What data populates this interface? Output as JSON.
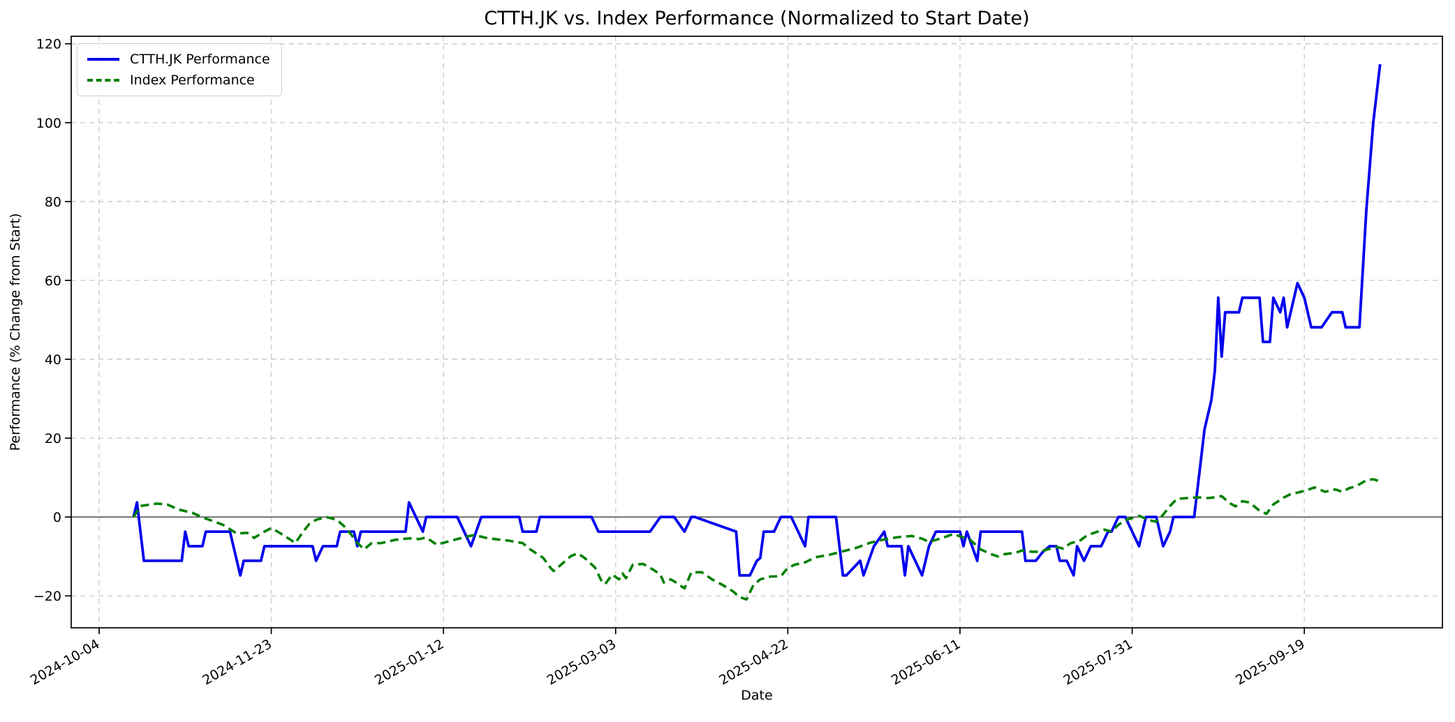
{
  "figure": {
    "title": "CTTH.JK vs. Index Performance (Normalized to Start Date)",
    "x_label": "Date",
    "y_label": "Performance (% Change from Start)"
  },
  "legend": {
    "position": "upper-left",
    "items": [
      {
        "label": "CTTH.JK Performance",
        "color": "#0000ee",
        "style": "solid"
      },
      {
        "label": "Index Performance",
        "color": "#008000",
        "style": "dashed"
      }
    ]
  },
  "chart_data": {
    "type": "line",
    "title": "CTTH.JK vs. Index Performance (Normalized to Start Date)",
    "xlabel": "Date",
    "ylabel": "Performance (% Change from Start)",
    "grid": true,
    "x_unit": "days since 2024-10-04",
    "xlim": [
      -8.1,
      390.1
    ],
    "ylim": [
      -28.1,
      121.9
    ],
    "x_ticks": [
      {
        "d": 0,
        "label": "2024-10-04"
      },
      {
        "d": 50,
        "label": "2024-11-23"
      },
      {
        "d": 100,
        "label": "2025-01-12"
      },
      {
        "d": 150,
        "label": "2025-03-03"
      },
      {
        "d": 200,
        "label": "2025-04-22"
      },
      {
        "d": 250,
        "label": "2025-06-11"
      },
      {
        "d": 300,
        "label": "2025-07-31"
      },
      {
        "d": 350,
        "label": "2025-09-19"
      }
    ],
    "y_ticks": [
      {
        "v": -20,
        "label": "−20"
      },
      {
        "v": 0,
        "label": "0"
      },
      {
        "v": 20,
        "label": "20"
      },
      {
        "v": 40,
        "label": "40"
      },
      {
        "v": 60,
        "label": "60"
      },
      {
        "v": 80,
        "label": "80"
      },
      {
        "v": 100,
        "label": "100"
      },
      {
        "v": 120,
        "label": "120"
      }
    ],
    "zero_line": 0,
    "series": [
      {
        "name": "CTTH.JK Performance",
        "color": "#0000ee",
        "dash": null,
        "width": 3.8,
        "points": [
          [
            10,
            0
          ],
          [
            11,
            3.7
          ],
          [
            13,
            -11.1
          ],
          [
            24,
            -11.1
          ],
          [
            25,
            -3.7
          ],
          [
            26,
            -7.4
          ],
          [
            30,
            -7.4
          ],
          [
            31,
            -3.7
          ],
          [
            38,
            -3.7
          ],
          [
            39,
            -7.4
          ],
          [
            41,
            -14.8
          ],
          [
            42,
            -11.1
          ],
          [
            47,
            -11.1
          ],
          [
            48,
            -7.4
          ],
          [
            62,
            -7.4
          ],
          [
            63,
            -11.1
          ],
          [
            65,
            -7.4
          ],
          [
            69,
            -7.4
          ],
          [
            70,
            -3.7
          ],
          [
            74,
            -3.7
          ],
          [
            75,
            -7.4
          ],
          [
            76,
            -3.7
          ],
          [
            89,
            -3.7
          ],
          [
            90,
            3.7
          ],
          [
            94,
            -3.7
          ],
          [
            95,
            0
          ],
          [
            104,
            0
          ],
          [
            106,
            -3.7
          ],
          [
            108,
            -7.4
          ],
          [
            111,
            0
          ],
          [
            122,
            0
          ],
          [
            123,
            -3.7
          ],
          [
            127,
            -3.7
          ],
          [
            128,
            0
          ],
          [
            143,
            0
          ],
          [
            145,
            -3.7
          ],
          [
            160,
            -3.7
          ],
          [
            163,
            0
          ],
          [
            167,
            0
          ],
          [
            170,
            -3.7
          ],
          [
            172,
            0
          ],
          [
            173,
            0
          ],
          [
            185,
            -3.7
          ],
          [
            186,
            -14.8
          ],
          [
            189,
            -14.8
          ],
          [
            191,
            -11.1
          ],
          [
            192,
            -10.4
          ],
          [
            193,
            -3.7
          ],
          [
            196,
            -3.7
          ],
          [
            198,
            0
          ],
          [
            201,
            0
          ],
          [
            203,
            -3.7
          ],
          [
            205,
            -7.4
          ],
          [
            206,
            0
          ],
          [
            214,
            0
          ],
          [
            216,
            -14.8
          ],
          [
            217,
            -14.8
          ],
          [
            221,
            -11.1
          ],
          [
            222,
            -14.8
          ],
          [
            225,
            -7.4
          ],
          [
            228,
            -3.7
          ],
          [
            229,
            -7.4
          ],
          [
            233,
            -7.4
          ],
          [
            234,
            -14.8
          ],
          [
            235,
            -7.4
          ],
          [
            237,
            -11.1
          ],
          [
            239,
            -14.8
          ],
          [
            241,
            -7.4
          ],
          [
            243,
            -3.7
          ],
          [
            250,
            -3.7
          ],
          [
            251,
            -7.4
          ],
          [
            252,
            -3.7
          ],
          [
            255,
            -11.1
          ],
          [
            256,
            -3.7
          ],
          [
            268,
            -3.7
          ],
          [
            269,
            -11.1
          ],
          [
            272,
            -11.1
          ],
          [
            274,
            -8.9
          ],
          [
            276,
            -7.4
          ],
          [
            278,
            -7.4
          ],
          [
            279,
            -11.1
          ],
          [
            281,
            -11.1
          ],
          [
            283,
            -14.8
          ],
          [
            284,
            -7.4
          ],
          [
            286,
            -11.1
          ],
          [
            288,
            -7.4
          ],
          [
            291,
            -7.4
          ],
          [
            293,
            -3.7
          ],
          [
            294,
            -3.7
          ],
          [
            296,
            0
          ],
          [
            298,
            0
          ],
          [
            300,
            -3.7
          ],
          [
            302,
            -7.4
          ],
          [
            304,
            0
          ],
          [
            307,
            0
          ],
          [
            309,
            -7.4
          ],
          [
            311,
            -3.7
          ],
          [
            312,
            0
          ],
          [
            318,
            0
          ],
          [
            320,
            14.8
          ],
          [
            321,
            22.2
          ],
          [
            322,
            25.9
          ],
          [
            323,
            29.6
          ],
          [
            324,
            37
          ],
          [
            325,
            55.6
          ],
          [
            326,
            40.7
          ],
          [
            327,
            51.9
          ],
          [
            331,
            51.9
          ],
          [
            332,
            55.6
          ],
          [
            337,
            55.6
          ],
          [
            338,
            44.4
          ],
          [
            340,
            44.4
          ],
          [
            341,
            55.6
          ],
          [
            343,
            51.9
          ],
          [
            344,
            55.6
          ],
          [
            345,
            48.1
          ],
          [
            348,
            59.3
          ],
          [
            350,
            55.6
          ],
          [
            352,
            48.1
          ],
          [
            355,
            48.1
          ],
          [
            358,
            51.9
          ],
          [
            361,
            51.9
          ],
          [
            362,
            48.1
          ],
          [
            366,
            48.1
          ],
          [
            368,
            77.8
          ],
          [
            370,
            100
          ],
          [
            372,
            114.8
          ]
        ]
      },
      {
        "name": "Index Performance",
        "color": "#008000",
        "dash": [
          12,
          7
        ],
        "width": 3.6,
        "points": [
          [
            10,
            0
          ],
          [
            12,
            2.8
          ],
          [
            15,
            3.2
          ],
          [
            17,
            3.4
          ],
          [
            20,
            3.1
          ],
          [
            23,
            1.9
          ],
          [
            27,
            1.1
          ],
          [
            30,
            -0.1
          ],
          [
            33,
            -1
          ],
          [
            36,
            -2
          ],
          [
            40,
            -4.2
          ],
          [
            43,
            -4
          ],
          [
            45,
            -5.3
          ],
          [
            48,
            -3.7
          ],
          [
            50,
            -2.8
          ],
          [
            53,
            -4.3
          ],
          [
            56,
            -6
          ],
          [
            57,
            -6.6
          ],
          [
            59,
            -4
          ],
          [
            61,
            -1.8
          ],
          [
            63,
            -0.7
          ],
          [
            66,
            0
          ],
          [
            69,
            -0.7
          ],
          [
            71,
            -2.2
          ],
          [
            73,
            -4.2
          ],
          [
            75,
            -6.6
          ],
          [
            77,
            -8.2
          ],
          [
            79,
            -6.7
          ],
          [
            82,
            -6.6
          ],
          [
            86,
            -5.8
          ],
          [
            90,
            -5.4
          ],
          [
            93,
            -5.6
          ],
          [
            95,
            -5.2
          ],
          [
            98,
            -7
          ],
          [
            101,
            -6.3
          ],
          [
            104,
            -5.6
          ],
          [
            107,
            -4.9
          ],
          [
            109,
            -4.6
          ],
          [
            113,
            -5.4
          ],
          [
            116,
            -5.7
          ],
          [
            119,
            -6
          ],
          [
            123,
            -6.6
          ],
          [
            125,
            -8.1
          ],
          [
            129,
            -10.4
          ],
          [
            131,
            -12.8
          ],
          [
            132,
            -13.7
          ],
          [
            134,
            -12.2
          ],
          [
            137,
            -9.9
          ],
          [
            139,
            -9.2
          ],
          [
            141,
            -10.4
          ],
          [
            144,
            -12.8
          ],
          [
            146,
            -16.4
          ],
          [
            147,
            -17
          ],
          [
            149,
            -14.6
          ],
          [
            151,
            -15.8
          ],
          [
            152,
            -14.3
          ],
          [
            153,
            -15.5
          ],
          [
            155,
            -12.1
          ],
          [
            158,
            -11.9
          ],
          [
            161,
            -13.4
          ],
          [
            163,
            -14.6
          ],
          [
            164,
            -16.6
          ],
          [
            166,
            -15.8
          ],
          [
            167,
            -16.3
          ],
          [
            169,
            -17.5
          ],
          [
            170,
            -18.1
          ],
          [
            172,
            -14
          ],
          [
            175,
            -14
          ],
          [
            178,
            -15.8
          ],
          [
            181,
            -17.2
          ],
          [
            184,
            -18.8
          ],
          [
            186,
            -20.3
          ],
          [
            188,
            -20.9
          ],
          [
            190,
            -17.3
          ],
          [
            192,
            -15.8
          ],
          [
            195,
            -15.1
          ],
          [
            198,
            -15
          ],
          [
            200,
            -12.9
          ],
          [
            202,
            -12.1
          ],
          [
            205,
            -11.5
          ],
          [
            208,
            -10.2
          ],
          [
            212,
            -9.6
          ],
          [
            216,
            -8.7
          ],
          [
            220,
            -7.8
          ],
          [
            224,
            -6.5
          ],
          [
            228,
            -5.7
          ],
          [
            232,
            -5.1
          ],
          [
            236,
            -4.8
          ],
          [
            239,
            -5.5
          ],
          [
            241,
            -6.3
          ],
          [
            245,
            -5.3
          ],
          [
            248,
            -4.3
          ],
          [
            250,
            -4.9
          ],
          [
            253,
            -5.8
          ],
          [
            256,
            -8.2
          ],
          [
            259,
            -9.4
          ],
          [
            261,
            -10
          ],
          [
            263,
            -9.4
          ],
          [
            266,
            -9.1
          ],
          [
            268,
            -8.5
          ],
          [
            271,
            -8.8
          ],
          [
            273,
            -8.8
          ],
          [
            276,
            -8.1
          ],
          [
            278,
            -7.6
          ],
          [
            280,
            -8
          ],
          [
            282,
            -6.7
          ],
          [
            285,
            -5.9
          ],
          [
            287,
            -4.6
          ],
          [
            290,
            -3.7
          ],
          [
            292,
            -3.2
          ],
          [
            294,
            -3.7
          ],
          [
            296,
            -2
          ],
          [
            298,
            -0.8
          ],
          [
            301,
            0
          ],
          [
            302,
            0.3
          ],
          [
            305,
            -0.8
          ],
          [
            307,
            -1.2
          ],
          [
            309,
            0.6
          ],
          [
            311,
            2.8
          ],
          [
            313,
            4.6
          ],
          [
            316,
            4.8
          ],
          [
            319,
            5
          ],
          [
            322,
            4.8
          ],
          [
            324,
            5
          ],
          [
            326,
            5.3
          ],
          [
            328,
            3.7
          ],
          [
            330,
            2.7
          ],
          [
            332,
            4
          ],
          [
            334,
            3.7
          ],
          [
            337,
            1.6
          ],
          [
            339,
            0.8
          ],
          [
            341,
            3.2
          ],
          [
            344,
            4.9
          ],
          [
            346,
            5.8
          ],
          [
            349,
            6.4
          ],
          [
            351,
            6.9
          ],
          [
            353,
            7.5
          ],
          [
            356,
            6.4
          ],
          [
            359,
            7
          ],
          [
            361,
            6.4
          ],
          [
            363,
            7.3
          ],
          [
            365,
            7.8
          ],
          [
            368,
            9.3
          ],
          [
            370,
            9.6
          ],
          [
            372,
            9
          ]
        ]
      }
    ]
  }
}
